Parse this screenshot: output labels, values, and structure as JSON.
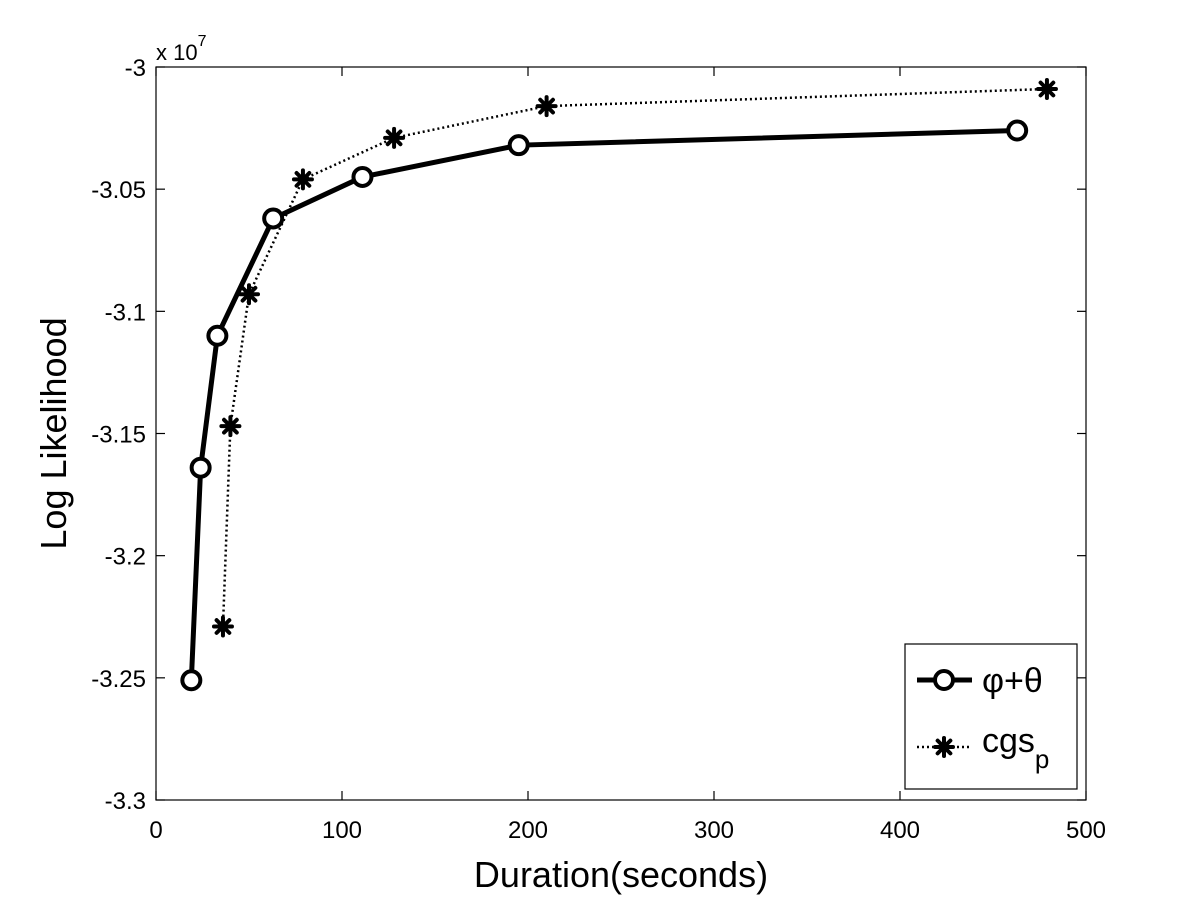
{
  "chart_data": {
    "type": "line",
    "title": "",
    "xlabel": "Duration(seconds)",
    "ylabel": "Log Likelihood",
    "xlim": [
      0,
      500
    ],
    "ylim": [
      -33000000.0,
      -30000000.0
    ],
    "x_ticks": [
      0,
      100,
      200,
      300,
      400,
      500
    ],
    "y_ticks": [
      -33000000.0,
      -32500000.0,
      -32000000.0,
      -31500000.0,
      -31000000.0,
      -30500000.0,
      -30000000.0
    ],
    "x_tick_labels": [
      "0",
      "100",
      "200",
      "300",
      "400",
      "500"
    ],
    "y_tick_labels": [
      "-3.3",
      "-3.25",
      "-3.2",
      "-3.15",
      "-3.1",
      "-3.05",
      "-3"
    ],
    "y_multiplier": {
      "prefix": "x 10",
      "power": "7"
    },
    "grid": false,
    "legend_position": "bottom-right",
    "series": [
      {
        "name": "φ+θ",
        "style": "solid",
        "marker": "circle",
        "color": "#000000",
        "x": [
          19,
          24,
          33,
          63,
          111,
          195,
          463
        ],
        "y": [
          -32510000,
          -31640000,
          -31100000,
          -30620000,
          -30450000,
          -30320000,
          -30260000
        ]
      },
      {
        "name": "cgs",
        "name_subscript": "p",
        "style": "dotted",
        "marker": "asterisk",
        "color": "#000000",
        "x": [
          36,
          40,
          50,
          79,
          128,
          210,
          479
        ],
        "y": [
          -32290000,
          -31470000,
          -30930000,
          -30460000,
          -30290000,
          -30160000,
          -30090000
        ]
      }
    ]
  }
}
